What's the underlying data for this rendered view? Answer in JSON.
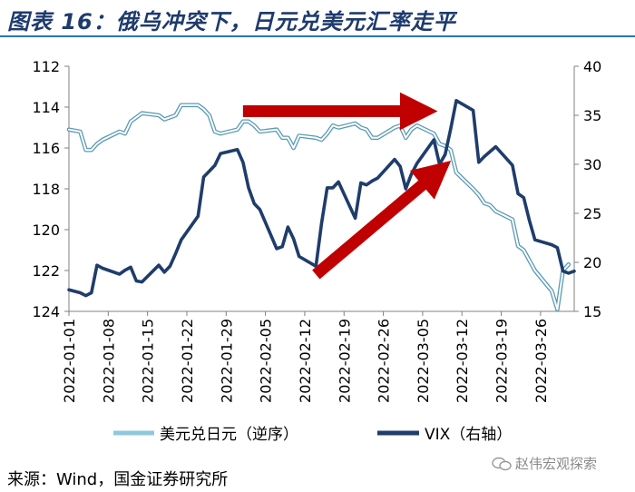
{
  "header": {
    "title": "图表 16：俄乌冲突下，日元兑美元汇率走平"
  },
  "footer": {
    "source": "来源：Wind，国金证券研究所"
  },
  "watermark": {
    "text": "赵伟宏观探索"
  },
  "colors": {
    "usdjpy": "#8ec9db",
    "vix": "#1f3d6b",
    "arrow": "#c00000",
    "title": "#1e3a6e",
    "rule": "#2e75b6"
  },
  "chart_data": {
    "type": "line",
    "x_ticks": [
      "2022-01-01",
      "2022-01-08",
      "2022-01-15",
      "2022-01-22",
      "2022-01-29",
      "2022-02-05",
      "2022-02-12",
      "2022-02-19",
      "2022-02-26",
      "2022-03-05",
      "2022-03-12",
      "2022-03-19",
      "2022-03-26"
    ],
    "x_range": [
      "2022-01-01",
      "2022-04-01"
    ],
    "y_left": {
      "min": 112,
      "max": 124,
      "step": 2,
      "reversed": true
    },
    "y_right": {
      "min": 15,
      "max": 40,
      "step": 5
    },
    "legend_position": "bottom",
    "series": [
      {
        "name": "美元兑日元（逆序）",
        "axis": "left",
        "color": "#8ec9db",
        "points": [
          [
            "2022-01-01",
            115.1
          ],
          [
            "2022-01-03",
            115.2
          ],
          [
            "2022-01-04",
            116.1
          ],
          [
            "2022-01-05",
            116.1
          ],
          [
            "2022-01-06",
            115.8
          ],
          [
            "2022-01-07",
            115.6
          ],
          [
            "2022-01-10",
            115.2
          ],
          [
            "2022-01-11",
            115.3
          ],
          [
            "2022-01-12",
            114.7
          ],
          [
            "2022-01-13",
            114.5
          ],
          [
            "2022-01-14",
            114.3
          ],
          [
            "2022-01-17",
            114.4
          ],
          [
            "2022-01-18",
            114.6
          ],
          [
            "2022-01-19",
            114.5
          ],
          [
            "2022-01-20",
            114.4
          ],
          [
            "2022-01-21",
            113.9
          ],
          [
            "2022-01-24",
            113.9
          ],
          [
            "2022-01-25",
            114.1
          ],
          [
            "2022-01-26",
            114.4
          ],
          [
            "2022-01-27",
            115.2
          ],
          [
            "2022-01-28",
            115.3
          ],
          [
            "2022-01-31",
            115.1
          ],
          [
            "2022-02-01",
            114.7
          ],
          [
            "2022-02-02",
            114.7
          ],
          [
            "2022-02-03",
            114.9
          ],
          [
            "2022-02-04",
            115.2
          ],
          [
            "2022-02-07",
            115.1
          ],
          [
            "2022-02-08",
            115.5
          ],
          [
            "2022-02-09",
            115.5
          ],
          [
            "2022-02-10",
            116.0
          ],
          [
            "2022-02-11",
            115.4
          ],
          [
            "2022-02-14",
            115.5
          ],
          [
            "2022-02-15",
            115.6
          ],
          [
            "2022-02-16",
            115.3
          ],
          [
            "2022-02-17",
            114.9
          ],
          [
            "2022-02-18",
            115.0
          ],
          [
            "2022-02-21",
            114.8
          ],
          [
            "2022-02-22",
            115.0
          ],
          [
            "2022-02-23",
            115.1
          ],
          [
            "2022-02-24",
            115.5
          ],
          [
            "2022-02-25",
            115.5
          ],
          [
            "2022-02-28",
            115.0
          ],
          [
            "2022-03-01",
            114.9
          ],
          [
            "2022-03-02",
            115.5
          ],
          [
            "2022-03-03",
            115.1
          ],
          [
            "2022-03-04",
            114.9
          ],
          [
            "2022-03-07",
            115.3
          ],
          [
            "2022-03-08",
            115.8
          ],
          [
            "2022-03-09",
            115.9
          ],
          [
            "2022-03-10",
            116.1
          ],
          [
            "2022-03-11",
            117.2
          ],
          [
            "2022-03-14",
            118.0
          ],
          [
            "2022-03-15",
            118.3
          ],
          [
            "2022-03-16",
            118.7
          ],
          [
            "2022-03-17",
            118.8
          ],
          [
            "2022-03-18",
            119.1
          ],
          [
            "2022-03-21",
            119.5
          ],
          [
            "2022-03-22",
            120.8
          ],
          [
            "2022-03-23",
            121.0
          ],
          [
            "2022-03-24",
            121.5
          ],
          [
            "2022-03-25",
            122.0
          ],
          [
            "2022-03-28",
            123.0
          ],
          [
            "2022-03-29",
            123.9
          ],
          [
            "2022-03-30",
            122.0
          ],
          [
            "2022-03-31",
            121.7
          ]
        ]
      },
      {
        "name": "VIX（右轴）",
        "axis": "right",
        "color": "#1f3d6b",
        "points": [
          [
            "2022-01-01",
            17.2
          ],
          [
            "2022-01-03",
            16.9
          ],
          [
            "2022-01-04",
            16.6
          ],
          [
            "2022-01-05",
            16.9
          ],
          [
            "2022-01-06",
            19.7
          ],
          [
            "2022-01-07",
            19.4
          ],
          [
            "2022-01-10",
            18.8
          ],
          [
            "2022-01-11",
            19.2
          ],
          [
            "2022-01-12",
            19.5
          ],
          [
            "2022-01-13",
            18.1
          ],
          [
            "2022-01-14",
            18.0
          ],
          [
            "2022-01-17",
            19.7
          ],
          [
            "2022-01-18",
            19.0
          ],
          [
            "2022-01-19",
            19.6
          ],
          [
            "2022-01-20",
            20.9
          ],
          [
            "2022-01-21",
            22.3
          ],
          [
            "2022-01-24",
            24.7
          ],
          [
            "2022-01-25",
            28.7
          ],
          [
            "2022-01-26",
            29.3
          ],
          [
            "2022-01-27",
            29.9
          ],
          [
            "2022-01-28",
            31.1
          ],
          [
            "2022-01-31",
            31.5
          ],
          [
            "2022-02-01",
            30.2
          ],
          [
            "2022-02-02",
            27.6
          ],
          [
            "2022-02-03",
            26.0
          ],
          [
            "2022-02-04",
            25.4
          ],
          [
            "2022-02-07",
            21.4
          ],
          [
            "2022-02-08",
            21.6
          ],
          [
            "2022-02-09",
            23.6
          ],
          [
            "2022-02-10",
            22.4
          ],
          [
            "2022-02-11",
            20.6
          ],
          [
            "2022-02-14",
            19.6
          ],
          [
            "2022-02-15",
            24.0
          ],
          [
            "2022-02-16",
            27.6
          ],
          [
            "2022-02-17",
            27.6
          ],
          [
            "2022-02-18",
            28.2
          ],
          [
            "2022-02-21",
            24.5
          ],
          [
            "2022-02-22",
            28.1
          ],
          [
            "2022-02-23",
            27.9
          ],
          [
            "2022-02-24",
            28.3
          ],
          [
            "2022-02-25",
            28.6
          ],
          [
            "2022-02-28",
            30.5
          ],
          [
            "2022-03-01",
            29.8
          ],
          [
            "2022-03-02",
            27.5
          ],
          [
            "2022-03-03",
            29.0
          ],
          [
            "2022-03-04",
            30.1
          ],
          [
            "2022-03-07",
            32.5
          ],
          [
            "2022-03-08",
            30.0
          ],
          [
            "2022-03-09",
            31.0
          ],
          [
            "2022-03-10",
            33.6
          ],
          [
            "2022-03-11",
            36.5
          ],
          [
            "2022-03-14",
            35.5
          ],
          [
            "2022-03-15",
            30.2
          ],
          [
            "2022-03-16",
            30.8
          ],
          [
            "2022-03-17",
            31.3
          ],
          [
            "2022-03-18",
            31.8
          ],
          [
            "2022-03-21",
            29.9
          ],
          [
            "2022-03-22",
            27.0
          ],
          [
            "2022-03-23",
            26.6
          ],
          [
            "2022-03-24",
            24.3
          ],
          [
            "2022-03-25",
            22.3
          ],
          [
            "2022-03-28",
            21.8
          ],
          [
            "2022-03-29",
            21.5
          ],
          [
            "2022-03-30",
            19.1
          ],
          [
            "2022-03-31",
            18.9
          ],
          [
            "2022-04-01",
            19.1
          ]
        ]
      }
    ],
    "annotations": [
      {
        "type": "arrow",
        "color": "#c00000",
        "from": [
          "2022-02-01",
          114.2
        ],
        "to": [
          "2022-03-05",
          114.2
        ]
      },
      {
        "type": "arrow",
        "color": "#c00000",
        "from": [
          "2022-02-14",
          122.2
        ],
        "to": [
          "2022-03-08",
          117.1
        ]
      }
    ]
  }
}
